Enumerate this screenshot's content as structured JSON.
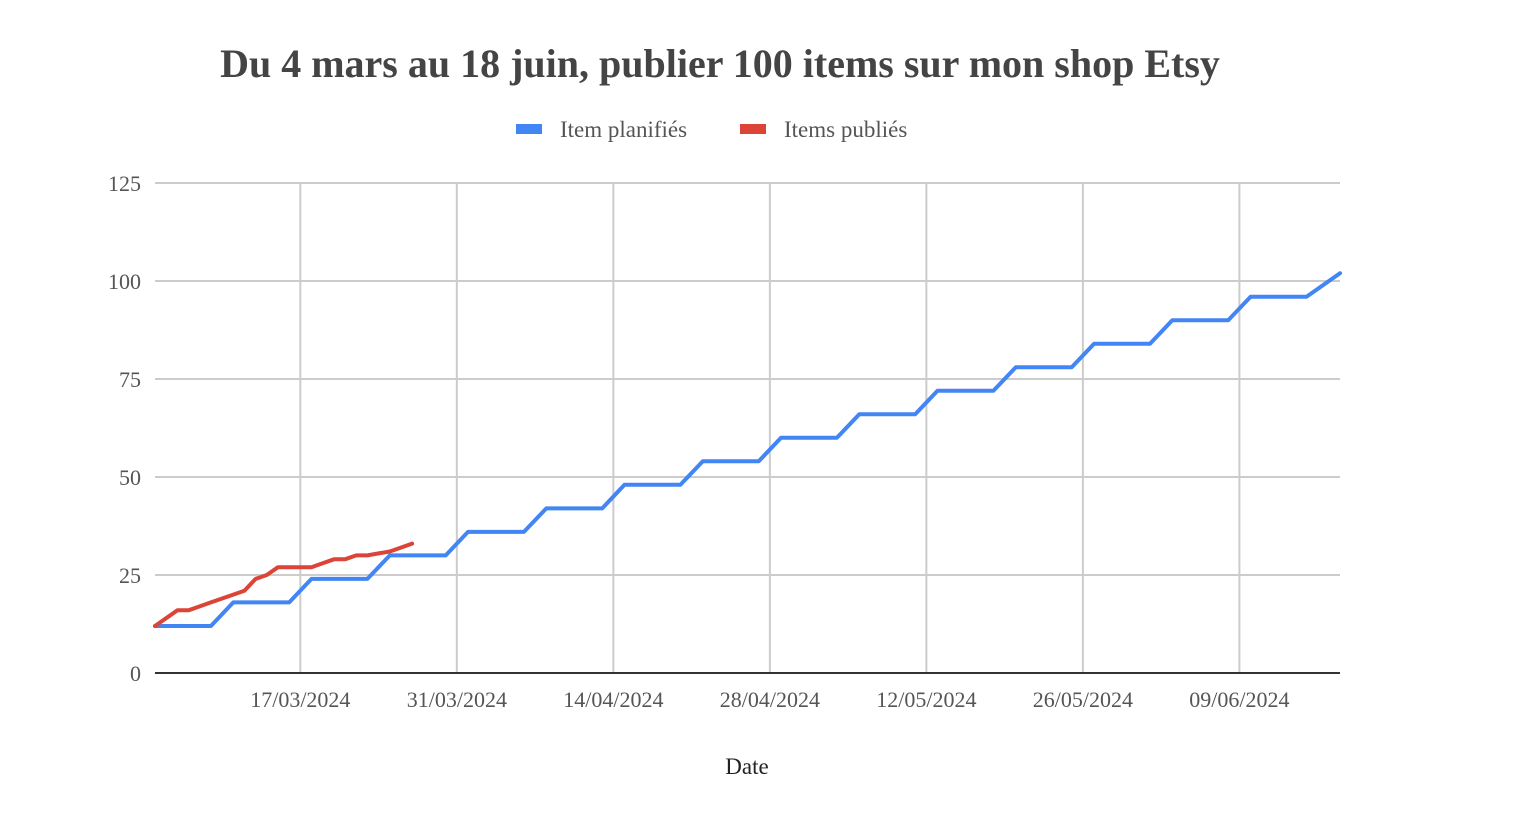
{
  "chart_data": {
    "type": "line",
    "title": "Du 4 mars au 18 juin, publier 100 items sur mon shop Etsy",
    "xlabel": "Date",
    "ylabel": "",
    "ylim": [
      0,
      125
    ],
    "yticks": [
      0,
      25,
      50,
      75,
      100,
      125
    ],
    "xlim": [
      "2024-03-04",
      "2024-06-18"
    ],
    "xticks": [
      "2024-03-17",
      "2024-03-31",
      "2024-04-14",
      "2024-04-28",
      "2024-05-12",
      "2024-05-26",
      "2024-06-09"
    ],
    "xtick_labels": [
      "17/03/2024",
      "31/03/2024",
      "14/04/2024",
      "28/04/2024",
      "12/05/2024",
      "26/05/2024",
      "09/06/2024"
    ],
    "grid": true,
    "legend": "top-center",
    "series": [
      {
        "name": "Item planifiés",
        "color": "#4285F4",
        "points": [
          [
            "2024-03-04",
            12
          ],
          [
            "2024-03-09",
            12
          ],
          [
            "2024-03-11",
            18
          ],
          [
            "2024-03-16",
            18
          ],
          [
            "2024-03-18",
            24
          ],
          [
            "2024-03-23",
            24
          ],
          [
            "2024-03-25",
            30
          ],
          [
            "2024-03-30",
            30
          ],
          [
            "2024-04-01",
            36
          ],
          [
            "2024-04-06",
            36
          ],
          [
            "2024-04-08",
            42
          ],
          [
            "2024-04-13",
            42
          ],
          [
            "2024-04-15",
            48
          ],
          [
            "2024-04-20",
            48
          ],
          [
            "2024-04-22",
            54
          ],
          [
            "2024-04-27",
            54
          ],
          [
            "2024-04-29",
            60
          ],
          [
            "2024-05-04",
            60
          ],
          [
            "2024-05-06",
            66
          ],
          [
            "2024-05-11",
            66
          ],
          [
            "2024-05-13",
            72
          ],
          [
            "2024-05-18",
            72
          ],
          [
            "2024-05-20",
            78
          ],
          [
            "2024-05-25",
            78
          ],
          [
            "2024-05-27",
            84
          ],
          [
            "2024-06-01",
            84
          ],
          [
            "2024-06-03",
            90
          ],
          [
            "2024-06-08",
            90
          ],
          [
            "2024-06-10",
            96
          ],
          [
            "2024-06-15",
            96
          ],
          [
            "2024-06-18",
            102
          ]
        ]
      },
      {
        "name": "Items publiés",
        "color": "#DB4437",
        "points": [
          [
            "2024-03-04",
            12
          ],
          [
            "2024-03-06",
            16
          ],
          [
            "2024-03-07",
            16
          ],
          [
            "2024-03-08",
            17
          ],
          [
            "2024-03-09",
            18
          ],
          [
            "2024-03-10",
            19
          ],
          [
            "2024-03-11",
            20
          ],
          [
            "2024-03-12",
            21
          ],
          [
            "2024-03-13",
            24
          ],
          [
            "2024-03-14",
            25
          ],
          [
            "2024-03-15",
            27
          ],
          [
            "2024-03-16",
            27
          ],
          [
            "2024-03-17",
            27
          ],
          [
            "2024-03-18",
            27
          ],
          [
            "2024-03-19",
            28
          ],
          [
            "2024-03-20",
            29
          ],
          [
            "2024-03-21",
            29
          ],
          [
            "2024-03-22",
            30
          ],
          [
            "2024-03-23",
            30
          ],
          [
            "2024-03-24",
            30.5
          ],
          [
            "2024-03-25",
            31
          ],
          [
            "2024-03-26",
            32
          ],
          [
            "2024-03-27",
            33
          ]
        ]
      }
    ]
  }
}
